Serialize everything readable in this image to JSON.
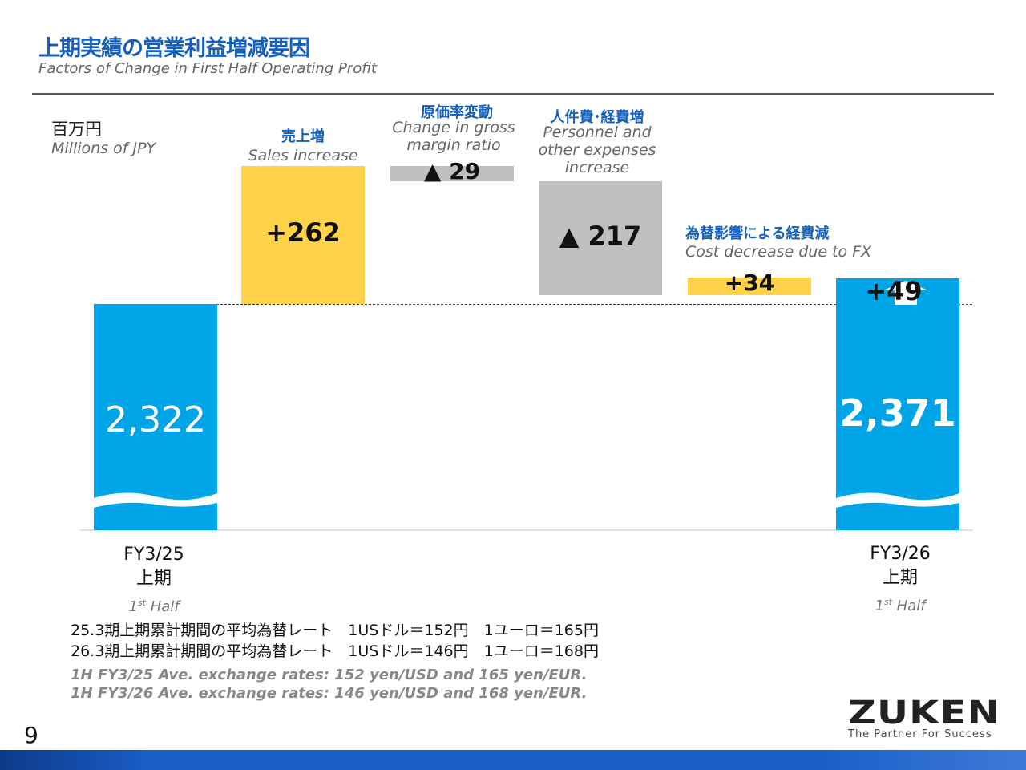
{
  "header": {
    "title": "上期実績の営業利益増減要因",
    "subtitle": "Factors of Change in First Half Operating Profit"
  },
  "unit": {
    "jp": "百万円",
    "en": "Millions of JPY"
  },
  "factors": [
    {
      "jp": "売上増",
      "en": "Sales increase"
    },
    {
      "jp": "原価率変動",
      "en": "Change in gross margin ratio"
    },
    {
      "jp": "人件費･経費増",
      "en": "Personnel and other expenses increase"
    },
    {
      "jp": "為替影響による経費減",
      "en": "Cost decrease due to FX"
    }
  ],
  "chart_data": {
    "type": "waterfall",
    "categories": [
      "FY3/25 上期 1st Half",
      "Sales increase",
      "Change in gross margin ratio",
      "Personnel and other expenses increase",
      "Cost decrease due to FX",
      "FY3/26 上期 1st Half"
    ],
    "values": [
      2322,
      262,
      -29,
      -217,
      34,
      2371
    ],
    "value_labels": [
      "2,322",
      "+262",
      "▲ 29",
      "▲ 217",
      "+34",
      "2,371"
    ],
    "net_change_label": "+49",
    "colors": {
      "total": "#00a5e8",
      "increase": "#ffd24a",
      "decrease": "#bfbfbf"
    },
    "axis_broken": true
  },
  "axis": {
    "left": {
      "fy": "FY3/25",
      "jp": "上期",
      "half": "1",
      "sup": "st",
      "en": " Half"
    },
    "right": {
      "fy": "FY3/26",
      "jp": "上期",
      "half": "1",
      "sup": "st",
      "en": " Half"
    }
  },
  "notes": {
    "jp1": "25.3期上期累計期間の平均為替レート　1USドル＝152円　1ユーロ＝165円",
    "jp2": "26.3期上期累計期間の平均為替レート　1USドル＝146円　1ユーロ＝168円",
    "en1": "1H FY3/25 Ave. exchange rates: 152 yen/USD and 165 yen/EUR.",
    "en2": "1H FY3/26 Ave. exchange rates: 146 yen/USD and 168 yen/EUR."
  },
  "page_number": "9",
  "logo": {
    "name": "ZUKEN",
    "tagline": "The Partner For Success"
  }
}
